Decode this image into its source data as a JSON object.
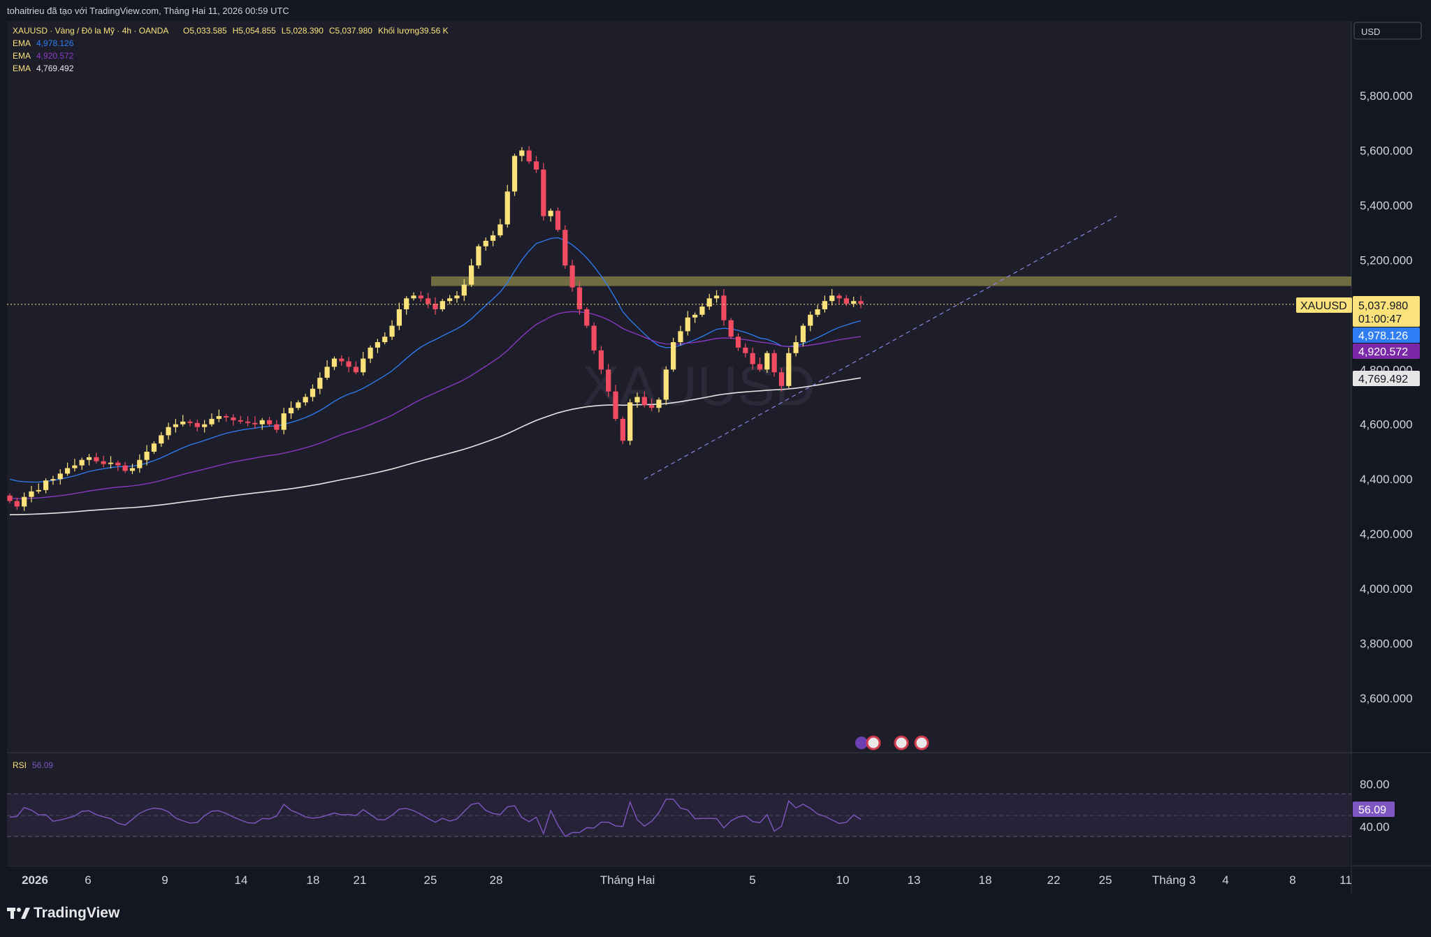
{
  "header": {
    "credit": "tohaitrieu đã tạo với TradingView.com, Tháng Hai 11, 2026 00:59 UTC"
  },
  "legend": {
    "symbol": "XAUUSD · Vàng / Đô la Mỹ · 4h · OANDA",
    "o_label": "O",
    "o_value": "5,033.585",
    "h_label": "H",
    "h_value": "5,054.855",
    "l_label": "L",
    "l_value": "5,028.390",
    "c_label": "C",
    "c_value": "5,037.980",
    "vol_label": "Khối lượng",
    "vol_value": "39.56 K",
    "ema": [
      {
        "name": "EMA",
        "value": "4,978.126",
        "color": "#2f7ef5"
      },
      {
        "name": "EMA",
        "value": "4,920.572",
        "color": "#8e3ac8"
      },
      {
        "name": "EMA",
        "value": "4,769.492",
        "color": "#e6e6e6"
      }
    ]
  },
  "currency": "USD",
  "watermark": "XAUUSD",
  "price_axis": [
    "5,800.000",
    "5,600.000",
    "5,400.000",
    "5,200.000",
    "4,800.000",
    "4,600.000",
    "4,400.000",
    "4,200.000",
    "4,000.000",
    "3,800.000",
    "3,600.000"
  ],
  "price_tags": {
    "symbol": "XAUUSD",
    "last": "5,037.980",
    "countdown": "01:00:47",
    "ema1": "4,978.126",
    "ema2": "4,920.572",
    "ema3": "4,769.492"
  },
  "rsi": {
    "label": "RSI",
    "value": "56.09",
    "levels": [
      "80.00",
      "40.00"
    ]
  },
  "time_axis": [
    "2026",
    "6",
    "9",
    "14",
    "18",
    "21",
    "25",
    "28",
    "Tháng Hai",
    "5",
    "10",
    "13",
    "18",
    "22",
    "25",
    "Tháng 3",
    "4",
    "8",
    "11"
  ],
  "brand": "TradingView",
  "colors": {
    "up": "#fbe27b",
    "down": "#f24c63",
    "zone": "#7e7a47",
    "bg": "#1e1e2b",
    "rsi_line": "#7e57c2"
  },
  "chart_data": {
    "type": "candlestick",
    "title": "XAUUSD · Vàng / Đô la Mỹ · 4h · OANDA",
    "y_axis_range": [
      3450,
      5850
    ],
    "rsi_range": [
      20,
      100
    ],
    "candles_close": [
      4320,
      4300,
      4335,
      4355,
      4360,
      4395,
      4400,
      4420,
      4440,
      4450,
      4470,
      4480,
      4465,
      4455,
      4460,
      4450,
      4430,
      4440,
      4470,
      4500,
      4530,
      4560,
      4590,
      4600,
      4610,
      4605,
      4590,
      4600,
      4620,
      4630,
      4625,
      4615,
      4610,
      4605,
      4600,
      4615,
      4600,
      4580,
      4640,
      4660,
      4680,
      4700,
      4730,
      4770,
      4810,
      4840,
      4830,
      4810,
      4790,
      4840,
      4880,
      4900,
      4920,
      4960,
      5020,
      5060,
      5070,
      5060,
      5040,
      5020,
      5050,
      5060,
      5070,
      5110,
      5180,
      5250,
      5270,
      5290,
      5330,
      5450,
      5580,
      5600,
      5560,
      5530,
      5360,
      5380,
      5310,
      5180,
      5100,
      5020,
      4960,
      4870,
      4800,
      4720,
      4620,
      4540,
      4680,
      4700,
      4670,
      4660,
      4690,
      4800,
      4900,
      4940,
      4990,
      5000,
      5030,
      5060,
      5070,
      4980,
      4920,
      4880,
      4860,
      4820,
      4800,
      4860,
      4790,
      4740,
      4860,
      4900,
      4960,
      5000,
      5020,
      5050,
      5070,
      5060,
      5040,
      5050,
      5040
    ],
    "ema_fast": {
      "name": "EMA",
      "last": 4978.126
    },
    "ema_mid": {
      "name": "EMA",
      "last": 4920.572
    },
    "ema_slow": {
      "name": "EMA",
      "last": 4769.492
    },
    "resistance_zone": [
      5105,
      5140
    ],
    "last_price": 5037.98,
    "rsi_last": 56.09
  }
}
